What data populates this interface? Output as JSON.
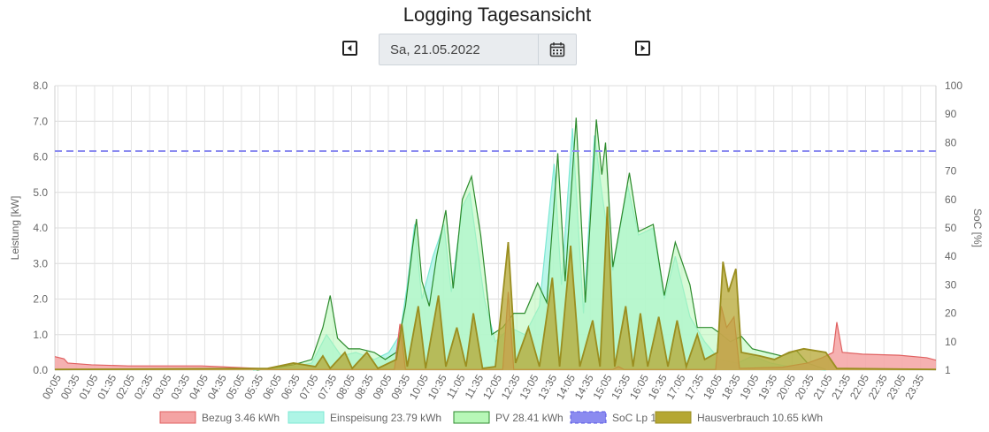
{
  "header": {
    "title": "Logging Tagesansicht"
  },
  "date_nav": {
    "date_value": "Sa, 21.05.2022",
    "prev_icon": "caret-left-icon",
    "next_icon": "caret-right-icon",
    "calendar_icon": "calendar-icon"
  },
  "chart_data": {
    "type": "area",
    "ylabel": "Leistung [kW]",
    "y2label": "SoC [%]",
    "ylim": [
      0,
      8
    ],
    "y2lim": [
      0,
      100
    ],
    "yticks": [
      "0.0",
      "1.0",
      "2.0",
      "3.0",
      "4.0",
      "5.0",
      "6.0",
      "7.0",
      "8.0"
    ],
    "y2ticks": [
      "1",
      "10",
      "20",
      "30",
      "40",
      "50",
      "60",
      "70",
      "80",
      "90",
      "100"
    ],
    "xticks": [
      "00:05",
      "00:35",
      "01:05",
      "01:35",
      "02:05",
      "02:35",
      "03:05",
      "03:35",
      "04:05",
      "04:35",
      "05:05",
      "05:35",
      "06:05",
      "06:35",
      "07:05",
      "07:35",
      "08:05",
      "08:35",
      "09:05",
      "09:35",
      "10:05",
      "10:35",
      "11:05",
      "11:35",
      "12:05",
      "12:35",
      "13:05",
      "13:35",
      "14:05",
      "14:35",
      "15:05",
      "15:35",
      "16:05",
      "16:35",
      "17:05",
      "17:35",
      "18:05",
      "18:35",
      "19:05",
      "19:35",
      "20:05",
      "20:35",
      "21:05",
      "21:35",
      "22:05",
      "22:35",
      "23:05",
      "23:35"
    ],
    "grid": true,
    "legend_position": "bottom",
    "series": [
      {
        "name": "Bezug 3.46 kWh",
        "color": "#f4a3a3",
        "stroke": "#e06060",
        "points": [
          [
            0,
            0.38
          ],
          [
            0.25,
            0.32
          ],
          [
            0.35,
            0.2
          ],
          [
            1,
            0.15
          ],
          [
            2,
            0.12
          ],
          [
            4,
            0.12
          ],
          [
            5.5,
            0.05
          ],
          [
            6,
            0.02
          ],
          [
            9.25,
            0.02
          ],
          [
            9.4,
            1.3
          ],
          [
            9.55,
            0.02
          ],
          [
            12.2,
            0.02
          ],
          [
            12.35,
            2.2
          ],
          [
            12.5,
            0.02
          ],
          [
            15.2,
            0.02
          ],
          [
            15.35,
            0.1
          ],
          [
            15.5,
            0.02
          ],
          [
            18,
            0.02
          ],
          [
            18.15,
            1.8
          ],
          [
            18.3,
            1.2
          ],
          [
            18.5,
            1.5
          ],
          [
            18.65,
            0.05
          ],
          [
            19.8,
            0.08
          ],
          [
            20.5,
            0.2
          ],
          [
            20.9,
            0.35
          ],
          [
            21.2,
            0.5
          ],
          [
            21.3,
            1.35
          ],
          [
            21.45,
            0.5
          ],
          [
            22,
            0.45
          ],
          [
            23,
            0.42
          ],
          [
            23.75,
            0.35
          ],
          [
            24,
            0.28
          ]
        ]
      },
      {
        "name": "Einspeisung 23.79 kWh",
        "color": "#aef5e6",
        "stroke": "#7de8d4",
        "points": [
          [
            5.4,
            0
          ],
          [
            6.5,
            0.1
          ],
          [
            7,
            0.2
          ],
          [
            7.4,
            1.0
          ],
          [
            7.8,
            0.4
          ],
          [
            8.2,
            0.5
          ],
          [
            8.7,
            0.3
          ],
          [
            9.1,
            0.5
          ],
          [
            9.4,
            1.0
          ],
          [
            9.6,
            2.4
          ],
          [
            9.8,
            4.1
          ],
          [
            10.0,
            2.0
          ],
          [
            10.3,
            3.2
          ],
          [
            10.6,
            4.1
          ],
          [
            10.8,
            2.2
          ],
          [
            11.1,
            4.6
          ],
          [
            11.3,
            5.0
          ],
          [
            11.7,
            2.0
          ],
          [
            12.0,
            0.8
          ],
          [
            12.4,
            1.2
          ],
          [
            12.8,
            1.0
          ],
          [
            13.2,
            1.8
          ],
          [
            13.6,
            5.8
          ],
          [
            13.8,
            2.4
          ],
          [
            14.1,
            6.8
          ],
          [
            14.4,
            1.6
          ],
          [
            14.7,
            6.6
          ],
          [
            14.9,
            5.0
          ],
          [
            15.2,
            2.8
          ],
          [
            15.6,
            5.2
          ],
          [
            15.9,
            3.8
          ],
          [
            16.3,
            4.0
          ],
          [
            16.6,
            2.0
          ],
          [
            16.9,
            3.2
          ],
          [
            17.3,
            1.5
          ],
          [
            17.7,
            0.8
          ],
          [
            18.1,
            0.3
          ],
          [
            18.6,
            0.2
          ],
          [
            19.0,
            0.4
          ],
          [
            19.5,
            0.2
          ],
          [
            20.0,
            0.1
          ],
          [
            20.5,
            0.05
          ],
          [
            21,
            0
          ]
        ]
      },
      {
        "name": "PV 28.41 kWh",
        "color": "#b7f7b7",
        "stroke": "#2c8a2c",
        "points": [
          [
            5.5,
            0
          ],
          [
            6.5,
            0.15
          ],
          [
            7,
            0.3
          ],
          [
            7.3,
            1.2
          ],
          [
            7.5,
            2.1
          ],
          [
            7.7,
            0.9
          ],
          [
            8.0,
            0.6
          ],
          [
            8.3,
            0.6
          ],
          [
            8.7,
            0.5
          ],
          [
            9.0,
            0.3
          ],
          [
            9.3,
            0.5
          ],
          [
            9.55,
            1.8
          ],
          [
            9.75,
            3.5
          ],
          [
            9.85,
            4.25
          ],
          [
            10.0,
            2.5
          ],
          [
            10.2,
            1.8
          ],
          [
            10.4,
            3.2
          ],
          [
            10.65,
            4.5
          ],
          [
            10.85,
            2.3
          ],
          [
            11.1,
            4.8
          ],
          [
            11.35,
            5.45
          ],
          [
            11.6,
            3.8
          ],
          [
            11.9,
            1.0
          ],
          [
            12.2,
            1.2
          ],
          [
            12.5,
            1.6
          ],
          [
            12.8,
            1.6
          ],
          [
            13.15,
            2.45
          ],
          [
            13.4,
            1.9
          ],
          [
            13.7,
            6.1
          ],
          [
            13.9,
            2.5
          ],
          [
            14.2,
            7.1
          ],
          [
            14.45,
            1.9
          ],
          [
            14.75,
            7.05
          ],
          [
            14.9,
            5.5
          ],
          [
            15.0,
            6.4
          ],
          [
            15.2,
            2.9
          ],
          [
            15.65,
            5.55
          ],
          [
            15.9,
            3.9
          ],
          [
            16.3,
            4.1
          ],
          [
            16.6,
            2.1
          ],
          [
            16.9,
            3.6
          ],
          [
            17.3,
            2.4
          ],
          [
            17.5,
            1.2
          ],
          [
            17.9,
            1.2
          ],
          [
            18.1,
            1.05
          ],
          [
            18.4,
            0.8
          ],
          [
            18.7,
            0.95
          ],
          [
            19.0,
            0.6
          ],
          [
            19.4,
            0.5
          ],
          [
            19.8,
            0.4
          ],
          [
            20.2,
            0.55
          ],
          [
            20.5,
            0.2
          ],
          [
            21,
            0.02
          ]
        ]
      },
      {
        "name": "SoC Lp 1",
        "color": "#8b8bf0",
        "stroke": "#5555e0",
        "dashed": true,
        "axis": "right",
        "points": [
          [
            0,
            77
          ],
          [
            24,
            77
          ]
        ]
      },
      {
        "name": "Hausverbrauch 10.65 kWh",
        "color": "#b5a733",
        "stroke": "#9a8e20",
        "points": [
          [
            0,
            0.02
          ],
          [
            5.8,
            0.05
          ],
          [
            6.5,
            0.2
          ],
          [
            7.1,
            0.1
          ],
          [
            7.3,
            0.4
          ],
          [
            7.5,
            0.05
          ],
          [
            7.9,
            0.5
          ],
          [
            8.1,
            0.05
          ],
          [
            8.5,
            0.5
          ],
          [
            8.8,
            0.05
          ],
          [
            9.3,
            0.3
          ],
          [
            9.45,
            1.3
          ],
          [
            9.6,
            0.1
          ],
          [
            9.9,
            1.8
          ],
          [
            10.1,
            0.05
          ],
          [
            10.45,
            2.1
          ],
          [
            10.65,
            0.1
          ],
          [
            10.95,
            1.2
          ],
          [
            11.2,
            0.1
          ],
          [
            11.4,
            1.6
          ],
          [
            11.65,
            0.05
          ],
          [
            12.0,
            0.1
          ],
          [
            12.35,
            3.6
          ],
          [
            12.55,
            0.2
          ],
          [
            12.9,
            1.2
          ],
          [
            13.2,
            0.1
          ],
          [
            13.55,
            2.6
          ],
          [
            13.75,
            0.1
          ],
          [
            14.05,
            3.5
          ],
          [
            14.3,
            0.1
          ],
          [
            14.65,
            1.4
          ],
          [
            14.85,
            0.1
          ],
          [
            15.05,
            4.6
          ],
          [
            15.25,
            0.1
          ],
          [
            15.55,
            1.8
          ],
          [
            15.75,
            0.1
          ],
          [
            15.95,
            1.6
          ],
          [
            16.15,
            0.1
          ],
          [
            16.45,
            1.5
          ],
          [
            16.7,
            0.1
          ],
          [
            16.95,
            1.4
          ],
          [
            17.2,
            0.1
          ],
          [
            17.5,
            1.0
          ],
          [
            17.7,
            0.3
          ],
          [
            18.05,
            0.5
          ],
          [
            18.2,
            3.05
          ],
          [
            18.35,
            2.2
          ],
          [
            18.55,
            2.85
          ],
          [
            18.7,
            0.5
          ],
          [
            19.2,
            0.4
          ],
          [
            19.6,
            0.3
          ],
          [
            20.0,
            0.5
          ],
          [
            20.4,
            0.6
          ],
          [
            21.0,
            0.5
          ],
          [
            21.3,
            0.05
          ],
          [
            24,
            0.02
          ]
        ]
      }
    ]
  }
}
